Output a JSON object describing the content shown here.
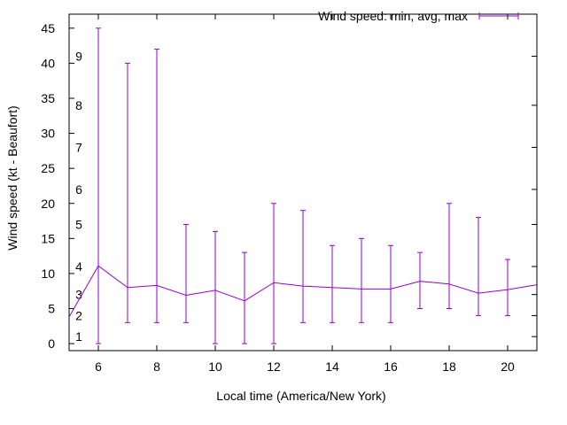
{
  "chart_data": {
    "type": "line",
    "title": "",
    "xlabel": "Local time (America/New York)",
    "ylabel": "Wind speed (kt - Beaufort)",
    "xlim": [
      5,
      21
    ],
    "ylim": [
      -1,
      47
    ],
    "x_ticks": [
      6,
      8,
      10,
      12,
      14,
      16,
      18,
      20
    ],
    "y_ticks": [
      0,
      5,
      10,
      15,
      20,
      25,
      30,
      35,
      40,
      45
    ],
    "beaufort_ticks": [
      {
        "label": "1",
        "kt": 1
      },
      {
        "label": "2",
        "kt": 4
      },
      {
        "label": "3",
        "kt": 7
      },
      {
        "label": "4",
        "kt": 11
      },
      {
        "label": "5",
        "kt": 17
      },
      {
        "label": "6",
        "kt": 22
      },
      {
        "label": "7",
        "kt": 28
      },
      {
        "label": "8",
        "kt": 34
      },
      {
        "label": "9",
        "kt": 41
      }
    ],
    "legend": {
      "label": "Wind speed: min, avg, max",
      "position": "top-right"
    },
    "series": [
      {
        "name": "Wind speed: min, avg, max",
        "color": "#9400d3",
        "line_points": [
          {
            "x": 5,
            "avg": 3.8
          },
          {
            "x": 6,
            "avg": 11.1
          },
          {
            "x": 7,
            "avg": 8.0
          },
          {
            "x": 8,
            "avg": 8.3
          },
          {
            "x": 9,
            "avg": 6.9
          },
          {
            "x": 10,
            "avg": 7.6
          },
          {
            "x": 11,
            "avg": 6.1
          },
          {
            "x": 12,
            "avg": 8.7
          },
          {
            "x": 13,
            "avg": 8.2
          },
          {
            "x": 14,
            "avg": 8.0
          },
          {
            "x": 15,
            "avg": 7.8
          },
          {
            "x": 16,
            "avg": 7.8
          },
          {
            "x": 17,
            "avg": 8.9
          },
          {
            "x": 18,
            "avg": 8.5
          },
          {
            "x": 19,
            "avg": 7.2
          },
          {
            "x": 20,
            "avg": 7.7
          },
          {
            "x": 21,
            "avg": 8.4
          }
        ],
        "error_bars": [
          {
            "x": 6,
            "min": 0,
            "max": 45
          },
          {
            "x": 7,
            "min": 3,
            "max": 40
          },
          {
            "x": 8,
            "min": 3,
            "max": 42
          },
          {
            "x": 9,
            "min": 3,
            "max": 17
          },
          {
            "x": 10,
            "min": 0,
            "max": 16
          },
          {
            "x": 11,
            "min": 0,
            "max": 13
          },
          {
            "x": 12,
            "min": 0,
            "max": 20
          },
          {
            "x": 13,
            "min": 3,
            "max": 19
          },
          {
            "x": 14,
            "min": 3,
            "max": 14
          },
          {
            "x": 15,
            "min": 3,
            "max": 15
          },
          {
            "x": 16,
            "min": 3,
            "max": 14
          },
          {
            "x": 17,
            "min": 5,
            "max": 13
          },
          {
            "x": 18,
            "min": 5,
            "max": 20
          },
          {
            "x": 19,
            "min": 4,
            "max": 18
          },
          {
            "x": 20,
            "min": 4,
            "max": 12
          }
        ]
      }
    ]
  }
}
